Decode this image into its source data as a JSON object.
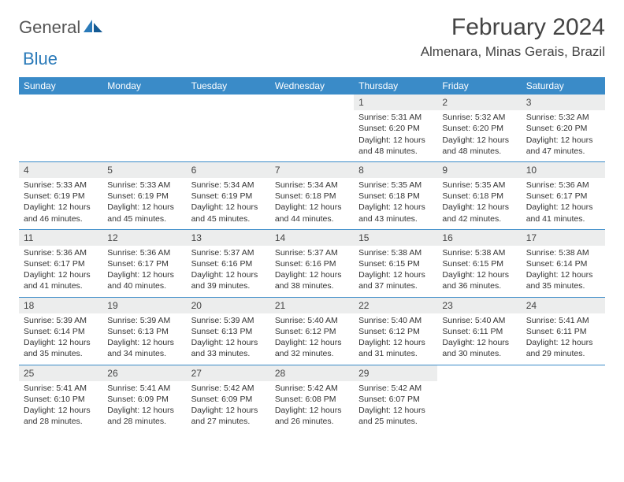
{
  "brand": {
    "general": "General",
    "blue": "Blue"
  },
  "title": "February 2024",
  "location": "Almenara, Minas Gerais, Brazil",
  "colors": {
    "header_bg": "#3a8bc8",
    "header_text": "#ffffff",
    "day_bar_bg": "#eceded",
    "rule": "#3a8bc8",
    "brand_blue": "#2a7ab9"
  },
  "weekdays": [
    "Sunday",
    "Monday",
    "Tuesday",
    "Wednesday",
    "Thursday",
    "Friday",
    "Saturday"
  ],
  "weeks": [
    [
      {
        "n": "",
        "sunrise": "",
        "sunset": "",
        "daylight": ""
      },
      {
        "n": "",
        "sunrise": "",
        "sunset": "",
        "daylight": ""
      },
      {
        "n": "",
        "sunrise": "",
        "sunset": "",
        "daylight": ""
      },
      {
        "n": "",
        "sunrise": "",
        "sunset": "",
        "daylight": ""
      },
      {
        "n": "1",
        "sunrise": "Sunrise: 5:31 AM",
        "sunset": "Sunset: 6:20 PM",
        "daylight": "Daylight: 12 hours and 48 minutes."
      },
      {
        "n": "2",
        "sunrise": "Sunrise: 5:32 AM",
        "sunset": "Sunset: 6:20 PM",
        "daylight": "Daylight: 12 hours and 48 minutes."
      },
      {
        "n": "3",
        "sunrise": "Sunrise: 5:32 AM",
        "sunset": "Sunset: 6:20 PM",
        "daylight": "Daylight: 12 hours and 47 minutes."
      }
    ],
    [
      {
        "n": "4",
        "sunrise": "Sunrise: 5:33 AM",
        "sunset": "Sunset: 6:19 PM",
        "daylight": "Daylight: 12 hours and 46 minutes."
      },
      {
        "n": "5",
        "sunrise": "Sunrise: 5:33 AM",
        "sunset": "Sunset: 6:19 PM",
        "daylight": "Daylight: 12 hours and 45 minutes."
      },
      {
        "n": "6",
        "sunrise": "Sunrise: 5:34 AM",
        "sunset": "Sunset: 6:19 PM",
        "daylight": "Daylight: 12 hours and 45 minutes."
      },
      {
        "n": "7",
        "sunrise": "Sunrise: 5:34 AM",
        "sunset": "Sunset: 6:18 PM",
        "daylight": "Daylight: 12 hours and 44 minutes."
      },
      {
        "n": "8",
        "sunrise": "Sunrise: 5:35 AM",
        "sunset": "Sunset: 6:18 PM",
        "daylight": "Daylight: 12 hours and 43 minutes."
      },
      {
        "n": "9",
        "sunrise": "Sunrise: 5:35 AM",
        "sunset": "Sunset: 6:18 PM",
        "daylight": "Daylight: 12 hours and 42 minutes."
      },
      {
        "n": "10",
        "sunrise": "Sunrise: 5:36 AM",
        "sunset": "Sunset: 6:17 PM",
        "daylight": "Daylight: 12 hours and 41 minutes."
      }
    ],
    [
      {
        "n": "11",
        "sunrise": "Sunrise: 5:36 AM",
        "sunset": "Sunset: 6:17 PM",
        "daylight": "Daylight: 12 hours and 41 minutes."
      },
      {
        "n": "12",
        "sunrise": "Sunrise: 5:36 AM",
        "sunset": "Sunset: 6:17 PM",
        "daylight": "Daylight: 12 hours and 40 minutes."
      },
      {
        "n": "13",
        "sunrise": "Sunrise: 5:37 AM",
        "sunset": "Sunset: 6:16 PM",
        "daylight": "Daylight: 12 hours and 39 minutes."
      },
      {
        "n": "14",
        "sunrise": "Sunrise: 5:37 AM",
        "sunset": "Sunset: 6:16 PM",
        "daylight": "Daylight: 12 hours and 38 minutes."
      },
      {
        "n": "15",
        "sunrise": "Sunrise: 5:38 AM",
        "sunset": "Sunset: 6:15 PM",
        "daylight": "Daylight: 12 hours and 37 minutes."
      },
      {
        "n": "16",
        "sunrise": "Sunrise: 5:38 AM",
        "sunset": "Sunset: 6:15 PM",
        "daylight": "Daylight: 12 hours and 36 minutes."
      },
      {
        "n": "17",
        "sunrise": "Sunrise: 5:38 AM",
        "sunset": "Sunset: 6:14 PM",
        "daylight": "Daylight: 12 hours and 35 minutes."
      }
    ],
    [
      {
        "n": "18",
        "sunrise": "Sunrise: 5:39 AM",
        "sunset": "Sunset: 6:14 PM",
        "daylight": "Daylight: 12 hours and 35 minutes."
      },
      {
        "n": "19",
        "sunrise": "Sunrise: 5:39 AM",
        "sunset": "Sunset: 6:13 PM",
        "daylight": "Daylight: 12 hours and 34 minutes."
      },
      {
        "n": "20",
        "sunrise": "Sunrise: 5:39 AM",
        "sunset": "Sunset: 6:13 PM",
        "daylight": "Daylight: 12 hours and 33 minutes."
      },
      {
        "n": "21",
        "sunrise": "Sunrise: 5:40 AM",
        "sunset": "Sunset: 6:12 PM",
        "daylight": "Daylight: 12 hours and 32 minutes."
      },
      {
        "n": "22",
        "sunrise": "Sunrise: 5:40 AM",
        "sunset": "Sunset: 6:12 PM",
        "daylight": "Daylight: 12 hours and 31 minutes."
      },
      {
        "n": "23",
        "sunrise": "Sunrise: 5:40 AM",
        "sunset": "Sunset: 6:11 PM",
        "daylight": "Daylight: 12 hours and 30 minutes."
      },
      {
        "n": "24",
        "sunrise": "Sunrise: 5:41 AM",
        "sunset": "Sunset: 6:11 PM",
        "daylight": "Daylight: 12 hours and 29 minutes."
      }
    ],
    [
      {
        "n": "25",
        "sunrise": "Sunrise: 5:41 AM",
        "sunset": "Sunset: 6:10 PM",
        "daylight": "Daylight: 12 hours and 28 minutes."
      },
      {
        "n": "26",
        "sunrise": "Sunrise: 5:41 AM",
        "sunset": "Sunset: 6:09 PM",
        "daylight": "Daylight: 12 hours and 28 minutes."
      },
      {
        "n": "27",
        "sunrise": "Sunrise: 5:42 AM",
        "sunset": "Sunset: 6:09 PM",
        "daylight": "Daylight: 12 hours and 27 minutes."
      },
      {
        "n": "28",
        "sunrise": "Sunrise: 5:42 AM",
        "sunset": "Sunset: 6:08 PM",
        "daylight": "Daylight: 12 hours and 26 minutes."
      },
      {
        "n": "29",
        "sunrise": "Sunrise: 5:42 AM",
        "sunset": "Sunset: 6:07 PM",
        "daylight": "Daylight: 12 hours and 25 minutes."
      },
      {
        "n": "",
        "sunrise": "",
        "sunset": "",
        "daylight": ""
      },
      {
        "n": "",
        "sunrise": "",
        "sunset": "",
        "daylight": ""
      }
    ]
  ]
}
